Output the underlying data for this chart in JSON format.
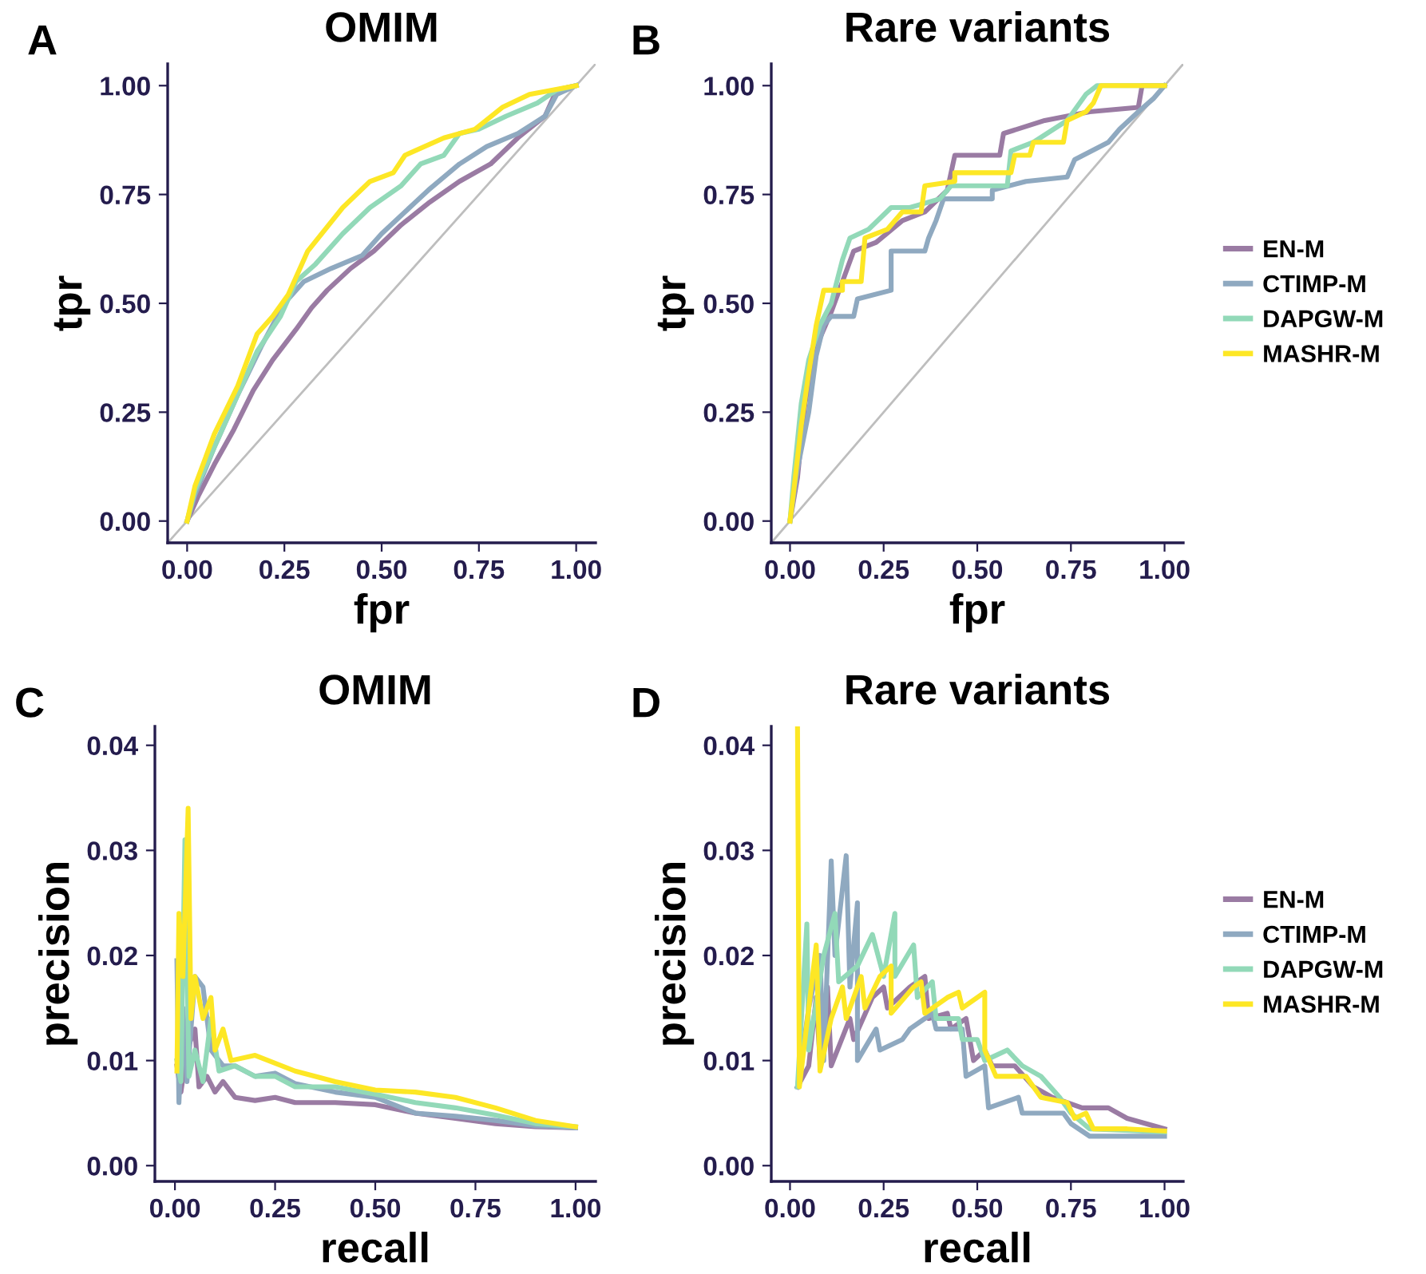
{
  "chart_data": [
    {
      "type": "line",
      "title": "OMIM",
      "xlabel": "fpr",
      "ylabel": "tpr",
      "annotations": [
        "A"
      ],
      "legend": false,
      "grid": false,
      "xlim": [
        -0.05,
        1.05
      ],
      "ylim": [
        -0.05,
        1.05
      ],
      "xticks": [
        {
          "value": 0,
          "label": "0.00"
        },
        {
          "value": 0.25,
          "label": "0.25"
        },
        {
          "value": 0.5,
          "label": "0.50"
        },
        {
          "value": 0.75,
          "label": "0.75"
        },
        {
          "value": 1,
          "label": "1.00"
        }
      ],
      "yticks": [
        {
          "value": 0,
          "label": "0.00"
        },
        {
          "value": 0.25,
          "label": "0.25"
        },
        {
          "value": 0.5,
          "label": "0.50"
        },
        {
          "value": 0.75,
          "label": "0.75"
        },
        {
          "value": 1,
          "label": "1.00"
        }
      ],
      "series": [
        {
          "color": "#bebebe",
          "x": [
            -0.05,
            1.05
          ],
          "values": [
            -0.05,
            1.05
          ]
        },
        {
          "color": "#9a7ba3",
          "x": [
            0,
            0.03,
            0.07,
            0.12,
            0.17,
            0.22,
            0.28,
            0.32,
            0.36,
            0.42,
            0.48,
            0.55,
            0.62,
            0.7,
            0.78,
            0.85,
            0.92,
            0.95,
            1
          ],
          "values": [
            0,
            0.06,
            0.13,
            0.21,
            0.3,
            0.37,
            0.44,
            0.49,
            0.53,
            0.58,
            0.62,
            0.68,
            0.73,
            0.78,
            0.82,
            0.88,
            0.93,
            0.99,
            1
          ]
        },
        {
          "color": "#8fa9c0",
          "x": [
            0,
            0.02,
            0.07,
            0.13,
            0.19,
            0.25,
            0.3,
            0.37,
            0.45,
            0.5,
            0.56,
            0.62,
            0.7,
            0.77,
            0.85,
            0.92,
            0.95,
            1
          ],
          "values": [
            0,
            0.06,
            0.17,
            0.29,
            0.4,
            0.5,
            0.55,
            0.58,
            0.61,
            0.66,
            0.71,
            0.76,
            0.82,
            0.86,
            0.89,
            0.93,
            0.98,
            1
          ]
        },
        {
          "color": "#92d9b8",
          "x": [
            0,
            0.02,
            0.07,
            0.13,
            0.18,
            0.24,
            0.28,
            0.33,
            0.4,
            0.47,
            0.55,
            0.6,
            0.66,
            0.7,
            0.75,
            0.82,
            0.9,
            0.95,
            1
          ],
          "values": [
            0,
            0.07,
            0.17,
            0.29,
            0.39,
            0.47,
            0.55,
            0.59,
            0.66,
            0.72,
            0.77,
            0.82,
            0.84,
            0.89,
            0.9,
            0.93,
            0.96,
            0.99,
            1
          ]
        },
        {
          "color": "#fde725",
          "x": [
            0,
            0.02,
            0.07,
            0.13,
            0.18,
            0.22,
            0.26,
            0.31,
            0.4,
            0.47,
            0.53,
            0.56,
            0.66,
            0.74,
            0.81,
            0.88,
            1
          ],
          "values": [
            0,
            0.08,
            0.2,
            0.31,
            0.43,
            0.47,
            0.52,
            0.62,
            0.72,
            0.78,
            0.8,
            0.84,
            0.88,
            0.9,
            0.95,
            0.98,
            1
          ]
        }
      ]
    },
    {
      "type": "line",
      "title": "Rare variants",
      "xlabel": "fpr",
      "ylabel": "tpr",
      "annotations": [
        "B"
      ],
      "legend": "right",
      "grid": false,
      "xlim": [
        -0.05,
        1.05
      ],
      "ylim": [
        -0.05,
        1.05
      ],
      "xticks": [
        {
          "value": 0,
          "label": "0.00"
        },
        {
          "value": 0.25,
          "label": "0.25"
        },
        {
          "value": 0.5,
          "label": "0.50"
        },
        {
          "value": 0.75,
          "label": "0.75"
        },
        {
          "value": 1,
          "label": "1.00"
        }
      ],
      "yticks": [
        {
          "value": 0,
          "label": "0.00"
        },
        {
          "value": 0.25,
          "label": "0.25"
        },
        {
          "value": 0.5,
          "label": "0.50"
        },
        {
          "value": 0.75,
          "label": "0.75"
        },
        {
          "value": 1,
          "label": "1.00"
        }
      ],
      "series": [
        {
          "color": "#bebebe",
          "x": [
            -0.05,
            1.05
          ],
          "values": [
            -0.05,
            1.05
          ]
        },
        {
          "name": "EN-M",
          "color": "#9a7ba3",
          "x": [
            0,
            0.02,
            0.04,
            0.07,
            0.11,
            0.14,
            0.17,
            0.23,
            0.3,
            0.36,
            0.42,
            0.44,
            0.56,
            0.57,
            0.68,
            0.8,
            0.93,
            0.94,
            1
          ],
          "values": [
            0,
            0.1,
            0.27,
            0.4,
            0.48,
            0.55,
            0.62,
            0.64,
            0.69,
            0.71,
            0.76,
            0.84,
            0.84,
            0.89,
            0.92,
            0.94,
            0.95,
            1,
            1
          ]
        },
        {
          "name": "CTIMP-M",
          "color": "#8fa9c0",
          "x": [
            0,
            0.02,
            0.05,
            0.07,
            0.09,
            0.11,
            0.17,
            0.18,
            0.27,
            0.27,
            0.36,
            0.37,
            0.39,
            0.41,
            0.54,
            0.54,
            0.63,
            0.74,
            0.76,
            0.85,
            0.88,
            0.93,
            0.97,
            1
          ],
          "values": [
            0,
            0.12,
            0.25,
            0.38,
            0.45,
            0.47,
            0.47,
            0.51,
            0.53,
            0.62,
            0.62,
            0.65,
            0.69,
            0.74,
            0.74,
            0.76,
            0.78,
            0.79,
            0.83,
            0.87,
            0.9,
            0.94,
            0.97,
            1
          ]
        },
        {
          "name": "DAPGW-M",
          "color": "#92d9b8",
          "x": [
            0,
            0.01,
            0.03,
            0.05,
            0.08,
            0.11,
            0.14,
            0.16,
            0.21,
            0.27,
            0.32,
            0.4,
            0.43,
            0.58,
            0.59,
            0.65,
            0.74,
            0.79,
            0.82,
            1
          ],
          "values": [
            0,
            0.1,
            0.27,
            0.37,
            0.45,
            0.5,
            0.6,
            0.65,
            0.67,
            0.72,
            0.72,
            0.74,
            0.77,
            0.77,
            0.85,
            0.87,
            0.92,
            0.98,
            1,
            1
          ]
        },
        {
          "name": "MASHR-M",
          "color": "#fde725",
          "x": [
            0,
            0.01,
            0.03,
            0.05,
            0.07,
            0.09,
            0.14,
            0.14,
            0.19,
            0.2,
            0.26,
            0.3,
            0.35,
            0.36,
            0.44,
            0.44,
            0.59,
            0.6,
            0.64,
            0.65,
            0.73,
            0.74,
            0.79,
            0.81,
            0.83,
            1
          ],
          "values": [
            0,
            0.07,
            0.22,
            0.34,
            0.45,
            0.53,
            0.53,
            0.55,
            0.55,
            0.65,
            0.67,
            0.71,
            0.71,
            0.77,
            0.78,
            0.8,
            0.8,
            0.84,
            0.84,
            0.87,
            0.87,
            0.92,
            0.94,
            0.96,
            1,
            1
          ]
        }
      ]
    },
    {
      "type": "line",
      "title": "OMIM",
      "xlabel": "recall",
      "ylabel": "precision",
      "annotations": [
        "C"
      ],
      "legend": false,
      "grid": false,
      "xlim": [
        -0.05,
        1.05
      ],
      "ylim": [
        -0.0015,
        0.0418
      ],
      "xticks": [
        {
          "value": 0,
          "label": "0.00"
        },
        {
          "value": 0.25,
          "label": "0.25"
        },
        {
          "value": 0.5,
          "label": "0.50"
        },
        {
          "value": 0.75,
          "label": "0.75"
        },
        {
          "value": 1,
          "label": "1.00"
        }
      ],
      "yticks": [
        {
          "value": 0,
          "label": "0.00"
        },
        {
          "value": 0.01,
          "label": "0.01"
        },
        {
          "value": 0.02,
          "label": "0.02"
        },
        {
          "value": 0.03,
          "label": "0.03"
        },
        {
          "value": 0.04,
          "label": "0.04"
        }
      ],
      "series": [
        {
          "color": "#9a7ba3",
          "x": [
            0.005,
            0.015,
            0.03,
            0.05,
            0.06,
            0.08,
            0.1,
            0.12,
            0.15,
            0.2,
            0.25,
            0.3,
            0.4,
            0.5,
            0.6,
            0.7,
            0.8,
            0.9,
            1
          ],
          "values": [
            0.0095,
            0.007,
            0.011,
            0.013,
            0.0075,
            0.0085,
            0.007,
            0.008,
            0.0065,
            0.0062,
            0.0065,
            0.006,
            0.006,
            0.0058,
            0.005,
            0.0045,
            0.004,
            0.0037,
            0.0036
          ]
        },
        {
          "color": "#8fa9c0",
          "x": [
            0.005,
            0.01,
            0.02,
            0.03,
            0.05,
            0.07,
            0.09,
            0.12,
            0.15,
            0.2,
            0.25,
            0.3,
            0.4,
            0.5,
            0.6,
            0.7,
            0.8,
            0.9,
            1
          ],
          "values": [
            0.0195,
            0.006,
            0.015,
            0.008,
            0.018,
            0.017,
            0.011,
            0.0095,
            0.0095,
            0.0085,
            0.0088,
            0.0078,
            0.007,
            0.0065,
            0.005,
            0.0047,
            0.0043,
            0.0038,
            0.0036
          ]
        },
        {
          "color": "#92d9b8",
          "x": [
            0.005,
            0.015,
            0.025,
            0.035,
            0.05,
            0.07,
            0.09,
            0.11,
            0.15,
            0.2,
            0.25,
            0.3,
            0.4,
            0.5,
            0.6,
            0.7,
            0.8,
            0.9,
            1
          ],
          "values": [
            0.01,
            0.008,
            0.031,
            0.0085,
            0.011,
            0.008,
            0.014,
            0.009,
            0.0095,
            0.0085,
            0.0085,
            0.0075,
            0.0075,
            0.0068,
            0.006,
            0.0055,
            0.0048,
            0.004,
            0.0037
          ]
        },
        {
          "color": "#fde725",
          "x": [
            0.005,
            0.01,
            0.02,
            0.033,
            0.04,
            0.05,
            0.07,
            0.09,
            0.1,
            0.12,
            0.14,
            0.2,
            0.3,
            0.4,
            0.5,
            0.6,
            0.7,
            0.8,
            0.9,
            1
          ],
          "values": [
            0.009,
            0.024,
            0.018,
            0.034,
            0.014,
            0.018,
            0.014,
            0.016,
            0.011,
            0.013,
            0.01,
            0.0105,
            0.009,
            0.008,
            0.0072,
            0.007,
            0.0065,
            0.0055,
            0.0043,
            0.0037
          ]
        }
      ]
    },
    {
      "type": "line",
      "title": "Rare variants",
      "xlabel": "recall",
      "ylabel": "precision",
      "annotations": [
        "D"
      ],
      "legend": "right",
      "grid": false,
      "xlim": [
        -0.05,
        1.05
      ],
      "ylim": [
        -0.0015,
        0.0418
      ],
      "xticks": [
        {
          "value": 0,
          "label": "0.00"
        },
        {
          "value": 0.25,
          "label": "0.25"
        },
        {
          "value": 0.5,
          "label": "0.50"
        },
        {
          "value": 0.75,
          "label": "0.75"
        },
        {
          "value": 1,
          "label": "1.00"
        }
      ],
      "yticks": [
        {
          "value": 0,
          "label": "0.00"
        },
        {
          "value": 0.01,
          "label": "0.01"
        },
        {
          "value": 0.02,
          "label": "0.02"
        },
        {
          "value": 0.03,
          "label": "0.03"
        },
        {
          "value": 0.04,
          "label": "0.04"
        }
      ],
      "series": [
        {
          "name": "EN-M",
          "color": "#9a7ba3",
          "x": [
            0.02,
            0.05,
            0.07,
            0.08,
            0.1,
            0.11,
            0.16,
            0.17,
            0.22,
            0.25,
            0.26,
            0.32,
            0.36,
            0.37,
            0.42,
            0.43,
            0.47,
            0.49,
            0.52,
            0.54,
            0.6,
            0.65,
            0.7,
            0.78,
            0.85,
            0.9,
            1
          ],
          "values": [
            0.0075,
            0.0095,
            0.016,
            0.01,
            0.017,
            0.0095,
            0.014,
            0.012,
            0.016,
            0.017,
            0.015,
            0.017,
            0.018,
            0.014,
            0.0145,
            0.013,
            0.014,
            0.01,
            0.011,
            0.0095,
            0.0095,
            0.0075,
            0.0065,
            0.0055,
            0.0055,
            0.0045,
            0.0035
          ]
        },
        {
          "name": "CTIMP-M",
          "color": "#8fa9c0",
          "x": [
            0.02,
            0.05,
            0.08,
            0.09,
            0.11,
            0.12,
            0.15,
            0.16,
            0.18,
            0.18,
            0.23,
            0.24,
            0.3,
            0.32,
            0.38,
            0.39,
            0.46,
            0.47,
            0.52,
            0.53,
            0.61,
            0.62,
            0.73,
            0.75,
            0.8,
            1
          ],
          "values": [
            0.0075,
            0.015,
            0.02,
            0.01,
            0.029,
            0.02,
            0.0295,
            0.017,
            0.025,
            0.01,
            0.013,
            0.011,
            0.012,
            0.013,
            0.0145,
            0.013,
            0.013,
            0.0085,
            0.0095,
            0.0055,
            0.0065,
            0.005,
            0.005,
            0.004,
            0.0028,
            0.0028
          ]
        },
        {
          "name": "DAPGW-M",
          "color": "#92d9b8",
          "x": [
            0.02,
            0.045,
            0.05,
            0.09,
            0.12,
            0.13,
            0.18,
            0.22,
            0.25,
            0.28,
            0.28,
            0.33,
            0.34,
            0.38,
            0.39,
            0.45,
            0.46,
            0.5,
            0.52,
            0.58,
            0.62,
            0.67,
            0.72,
            0.75,
            0.8,
            1
          ],
          "values": [
            0.0075,
            0.023,
            0.011,
            0.02,
            0.024,
            0.0175,
            0.019,
            0.022,
            0.018,
            0.024,
            0.018,
            0.021,
            0.016,
            0.0175,
            0.014,
            0.014,
            0.012,
            0.012,
            0.01,
            0.011,
            0.0095,
            0.0085,
            0.0065,
            0.005,
            0.0035,
            0.0032
          ]
        },
        {
          "name": "MASHR-M",
          "color": "#fde725",
          "x": [
            0.02,
            0.025,
            0.07,
            0.08,
            0.11,
            0.14,
            0.15,
            0.19,
            0.2,
            0.24,
            0.27,
            0.27,
            0.33,
            0.35,
            0.36,
            0.42,
            0.45,
            0.46,
            0.52,
            0.52,
            0.55,
            0.63,
            0.67,
            0.74,
            0.76,
            0.79,
            0.81,
            0.9,
            1
          ],
          "values": [
            0.0418,
            0.0075,
            0.021,
            0.009,
            0.014,
            0.017,
            0.014,
            0.018,
            0.015,
            0.018,
            0.019,
            0.0145,
            0.017,
            0.0175,
            0.0145,
            0.016,
            0.0165,
            0.015,
            0.0165,
            0.011,
            0.0085,
            0.0085,
            0.0065,
            0.006,
            0.0045,
            0.005,
            0.0035,
            0.0035,
            0.0033
          ]
        }
      ]
    }
  ]
}
